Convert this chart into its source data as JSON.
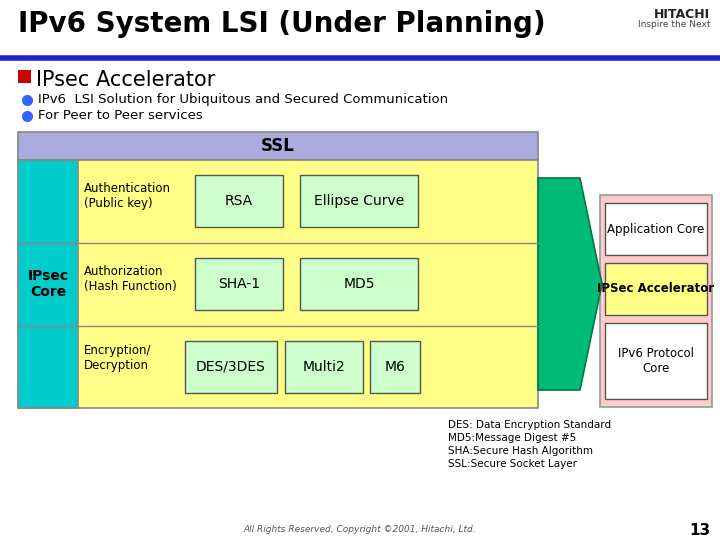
{
  "title": "IPv6 System LSI (Under Planning)",
  "background": "#ffffff",
  "title_color": "#000000",
  "title_fontsize": 20,
  "header_line_color": "#2222cc",
  "bullet1_text": "IPsec Accelerator",
  "bullet1_color": "#cc0000",
  "bullet2_text": "IPv6  LSI Solution for Ubiquitous and Secured Communication",
  "bullet3_text": "For Peer to Peer services",
  "bullet_dot_color": "#3366ff",
  "ssl_bg": "#aaaadd",
  "ssl_text": "SSL",
  "outer_bg": "#ffff88",
  "cyan_bg": "#00cccc",
  "ipsec_text": "IPsec\nCore",
  "row1_label": "Authentication\n(Public key)",
  "row2_label": "Authorization\n(Hash Function)",
  "row3_label": "Encryption/\nDecryption",
  "box1_1": "RSA",
  "box1_2": "Ellipse Curve",
  "box2_1": "SHA-1",
  "box2_2": "MD5",
  "box3_1": "DES/3DES",
  "box3_2": "Multi2",
  "box3_3": "M6",
  "green_box_bg": "#ccffcc",
  "right_outer_bg": "#ffcccc",
  "right_box1": "Application Core",
  "right_box2": "IPSec Accelerator",
  "right_box2_bg": "#ffff88",
  "right_box3": "IPv6 Protocol\nCore",
  "arrow_color": "#00bb77",
  "footnote1": "DES: Data Encryption Standard",
  "footnote2": "MD5:Message Digest #5",
  "footnote3": "SHA:Secure Hash Algorithm",
  "footnote4": "SSL:Secure Socket Layer",
  "copyright": "All Rights Reserved, Copyright ©2001, Hitachi, Ltd.",
  "page_num": "13"
}
